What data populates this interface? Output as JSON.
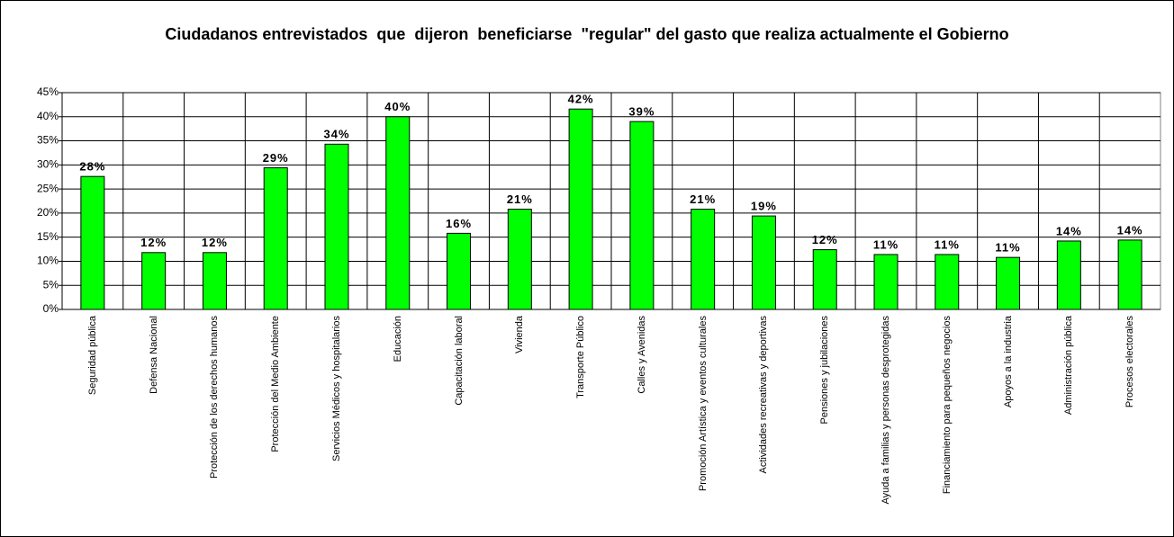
{
  "chart_data": {
    "type": "bar",
    "title": "Ciudadanos entrevistados  que  dijeron  beneficiarse  \"regular\" del gasto que realiza actualmente el Gobierno",
    "categories": [
      "Seguridad pública",
      "Defensa Nacional",
      "Protección de los derechos humanos",
      "Protección del Medio Ambiente",
      "Servicios Médicos y hospitalarios",
      "Educación",
      "Capacitación laboral",
      "Vivienda",
      "Transporte Público",
      "Calles y Avenidas",
      "Promoción Artística y eventos culturales",
      "Actividades recreativas y deportivas",
      "Pensiones y jubilaciones",
      "Ayuda a familias y personas desprotegidas",
      "Financiamiento para pequeños negocios",
      "Apoyos a la industria",
      "Administración pública",
      "Procesos electorales"
    ],
    "values": [
      27.6,
      11.8,
      11.8,
      29.4,
      34.3,
      40.0,
      15.8,
      20.8,
      41.6,
      39.0,
      20.8,
      19.4,
      12.4,
      11.4,
      11.4,
      10.8,
      14.2,
      14.4
    ],
    "value_labels": [
      "28%",
      "12%",
      "12%",
      "29%",
      "34%",
      "40%",
      "16%",
      "21%",
      "42%",
      "39%",
      "21%",
      "19%",
      "12%",
      "11%",
      "11%",
      "11%",
      "14%",
      "14%"
    ],
    "color": "#00ff00",
    "ylim": [
      0,
      45
    ],
    "yticks": [
      {
        "value": 0,
        "label": "0%"
      },
      {
        "value": 5,
        "label": "5%"
      },
      {
        "value": 10,
        "label": "10%"
      },
      {
        "value": 15,
        "label": "15%"
      },
      {
        "value": 20,
        "label": "20%"
      },
      {
        "value": 25,
        "label": "25%"
      },
      {
        "value": 30,
        "label": "30%"
      },
      {
        "value": 35,
        "label": "35%"
      },
      {
        "value": 40,
        "label": "40%"
      },
      {
        "value": 45,
        "label": "45%"
      }
    ],
    "grid": true
  }
}
